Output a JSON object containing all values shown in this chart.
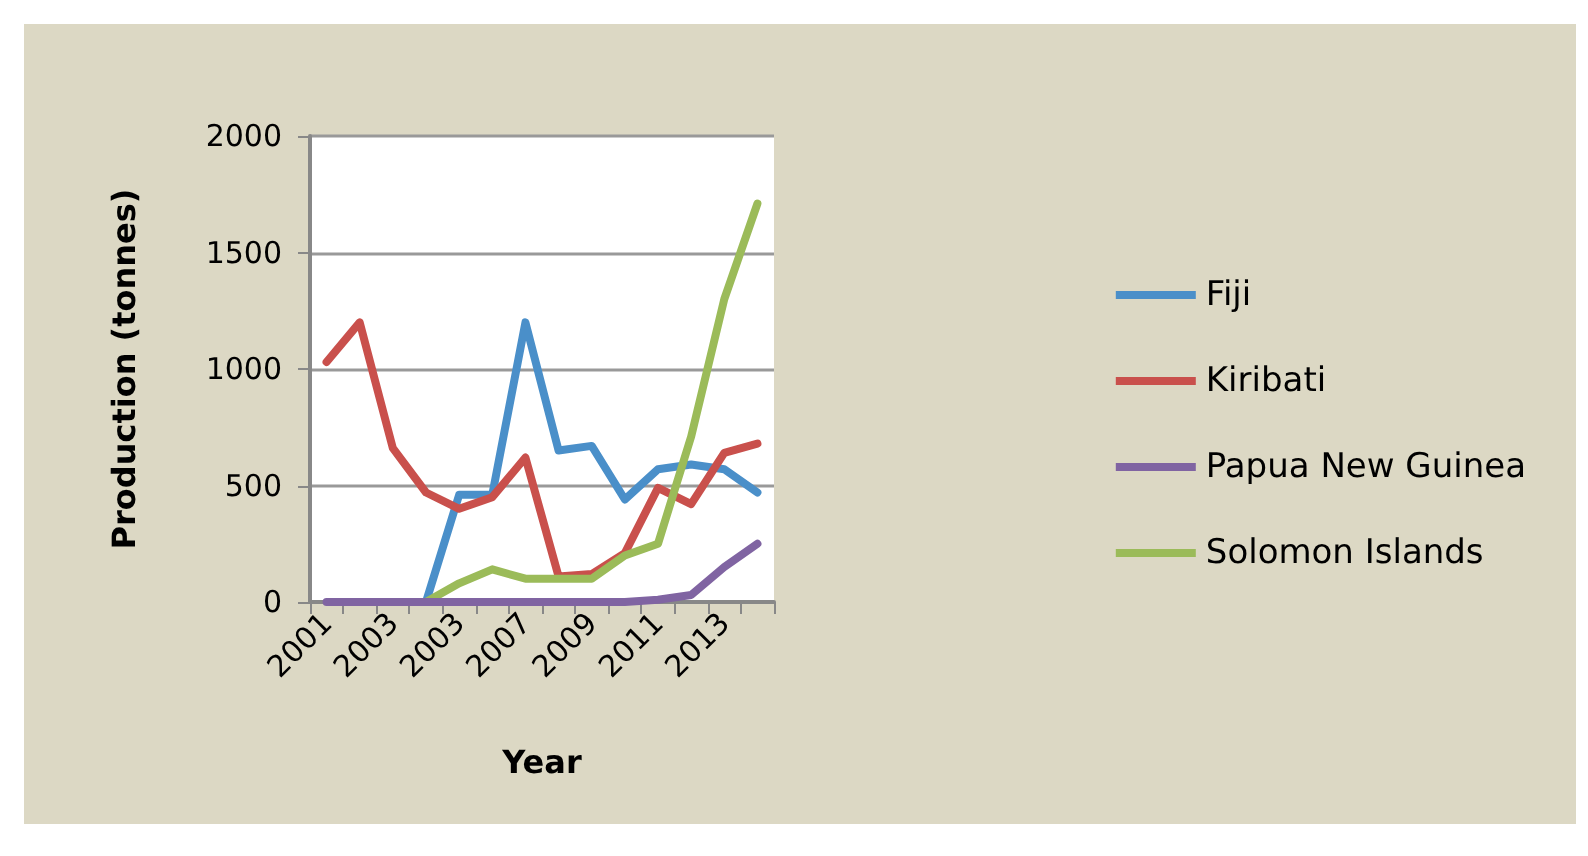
{
  "chart_data": {
    "type": "line",
    "xlabel": "Year",
    "ylabel": "Production (tonnes)",
    "categories": [
      "2001",
      null,
      "2003",
      null,
      "2003",
      null,
      "2007",
      null,
      "2009",
      null,
      "2011",
      null,
      "2013",
      null
    ],
    "series": [
      {
        "name": "Fiji",
        "color": "#4a8fc9",
        "values": [
          null,
          null,
          null,
          0,
          460,
          460,
          1200,
          650,
          670,
          440,
          570,
          590,
          570,
          470
        ]
      },
      {
        "name": "Kiribati",
        "color": "#c9504c",
        "values": [
          1030,
          1200,
          660,
          470,
          400,
          450,
          620,
          110,
          120,
          210,
          490,
          420,
          640,
          680
        ]
      },
      {
        "name": "Papua New Guinea",
        "color": "#8064a2",
        "values": [
          0,
          0,
          0,
          0,
          0,
          0,
          0,
          0,
          0,
          0,
          10,
          30,
          150,
          250
        ]
      },
      {
        "name": "Solomon Islands",
        "color": "#9bbb59",
        "values": [
          null,
          null,
          null,
          0,
          80,
          140,
          100,
          100,
          100,
          200,
          250,
          710,
          1300,
          1710
        ]
      }
    ],
    "ylim": [
      0,
      2000
    ],
    "yticks": [
      0,
      500,
      1000,
      1500,
      2000
    ],
    "grid": "y",
    "legend": "right",
    "marker": "none",
    "line_style": "solid"
  }
}
